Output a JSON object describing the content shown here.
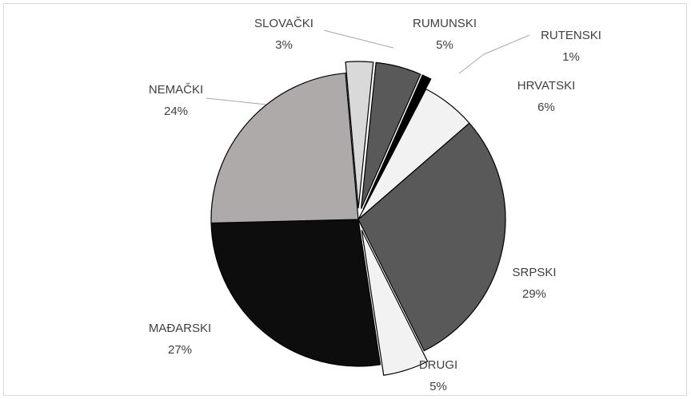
{
  "chart_data": {
    "type": "pie",
    "categories": [
      "SLOVAČKI",
      "RUMUNSKI",
      "RUTENSKI",
      "HRVATSKI",
      "SRPSKI",
      "DRUGI",
      "MAĐARSKI",
      "NEMAČKI"
    ],
    "values": [
      3,
      5,
      1,
      6,
      29,
      5,
      27,
      24
    ],
    "value_labels": [
      "3%",
      "5%",
      "1%",
      "6%",
      "29%",
      "5%",
      "27%",
      "24%"
    ],
    "colors": [
      "#d9d9d9",
      "#595959",
      "#000000",
      "#f2f2f2",
      "#595959",
      "#f2f2f2",
      "#0d0d0d",
      "#aeaaaa"
    ],
    "exploded": [
      true,
      true,
      true,
      false,
      false,
      true,
      false,
      false
    ]
  }
}
